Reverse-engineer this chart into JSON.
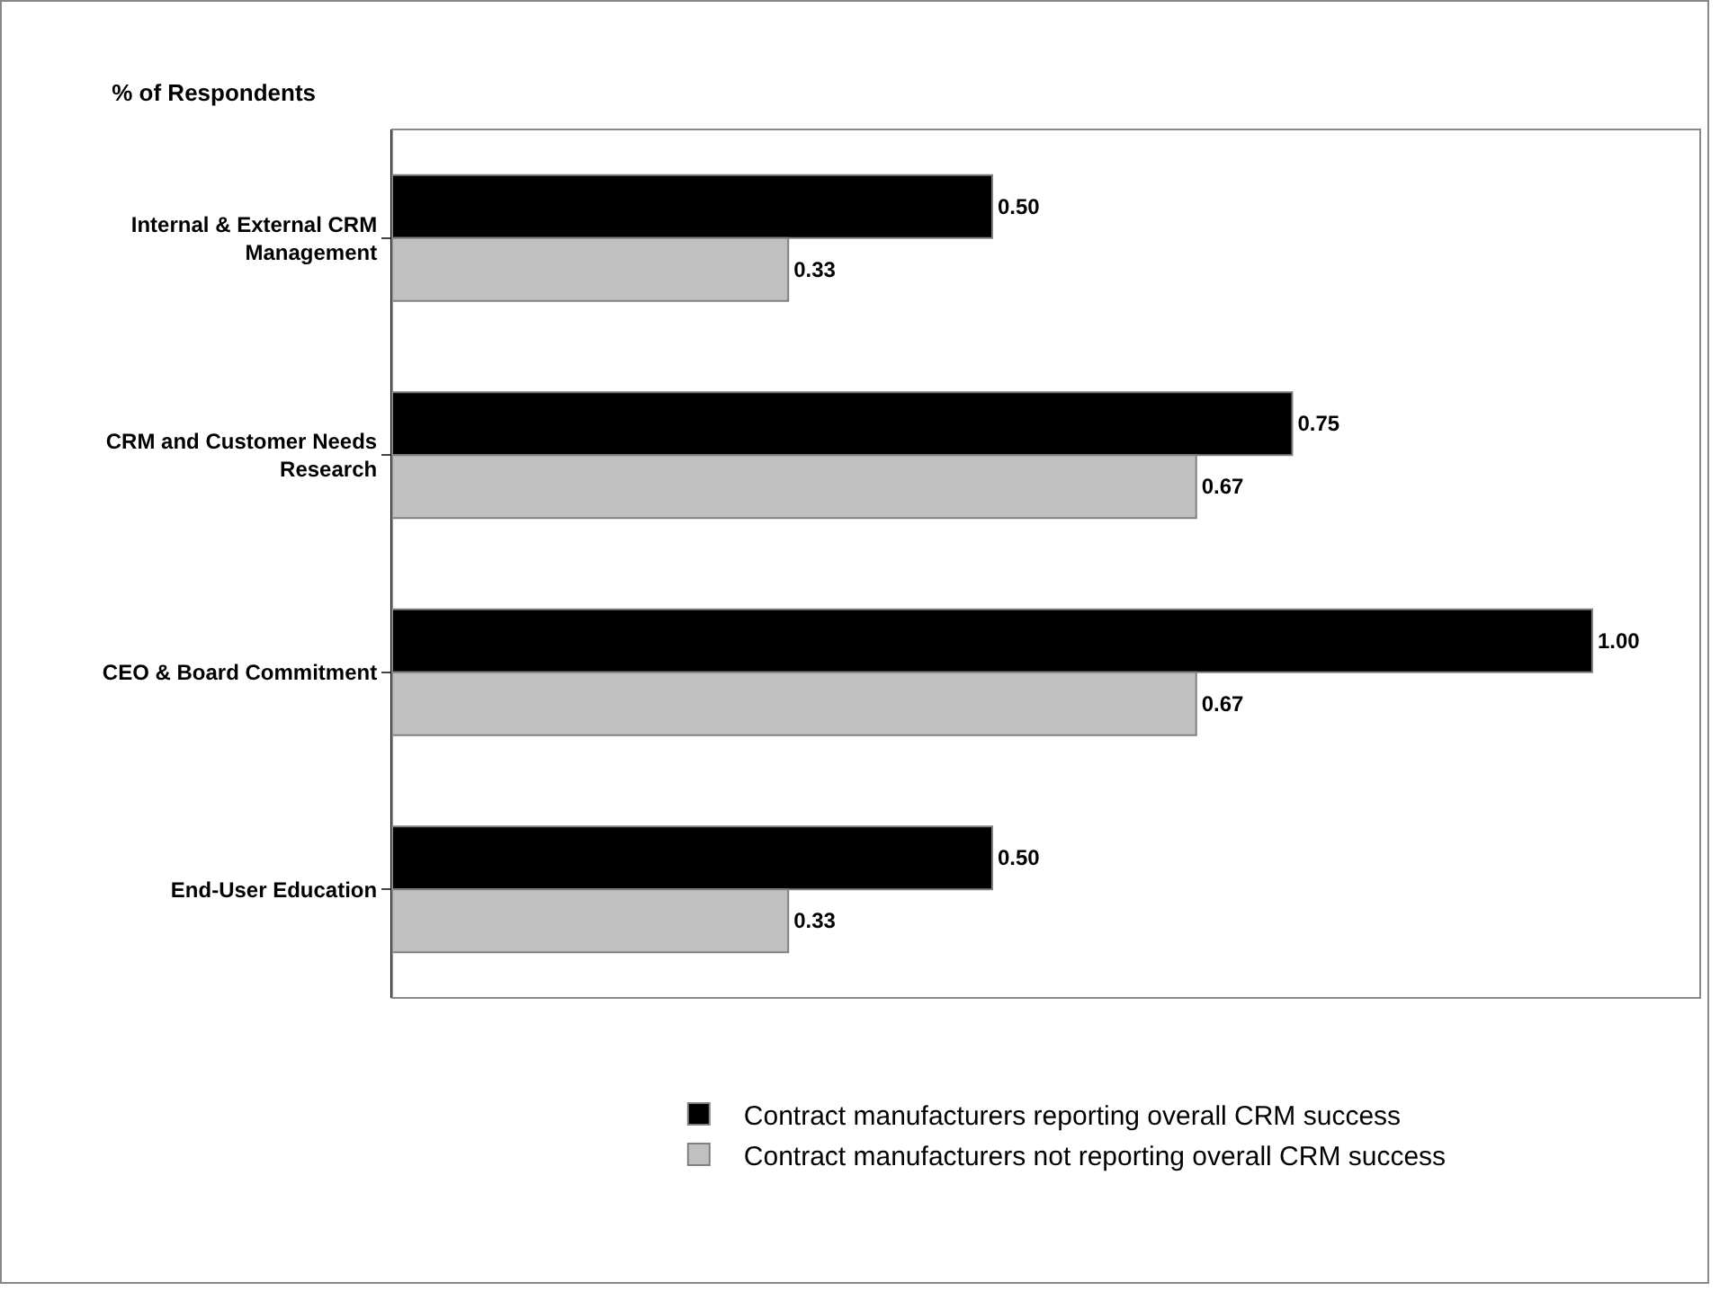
{
  "chart_data": {
    "type": "bar",
    "orientation": "horizontal",
    "title": "% of Respondents",
    "categories": [
      "Internal & External CRM Management",
      "CRM and Customer Needs Research",
      "CEO & Board Commitment",
      "End-User Education"
    ],
    "series": [
      {
        "name": "Contract manufacturers reporting overall CRM success",
        "color": "#000000",
        "values": [
          0.5,
          0.75,
          1.0,
          0.5
        ],
        "value_labels": [
          "0.50",
          "0.75",
          "1.00",
          "0.50"
        ]
      },
      {
        "name": "Contract manufacturers not reporting overall CRM success",
        "color": "#c0c0c0",
        "values": [
          0.33,
          0.67,
          0.67,
          0.33
        ],
        "value_labels": [
          "0.33",
          "0.67",
          "0.67",
          "0.33"
        ]
      }
    ],
    "xlim": [
      0,
      1.09
    ],
    "legend": "bottom"
  }
}
